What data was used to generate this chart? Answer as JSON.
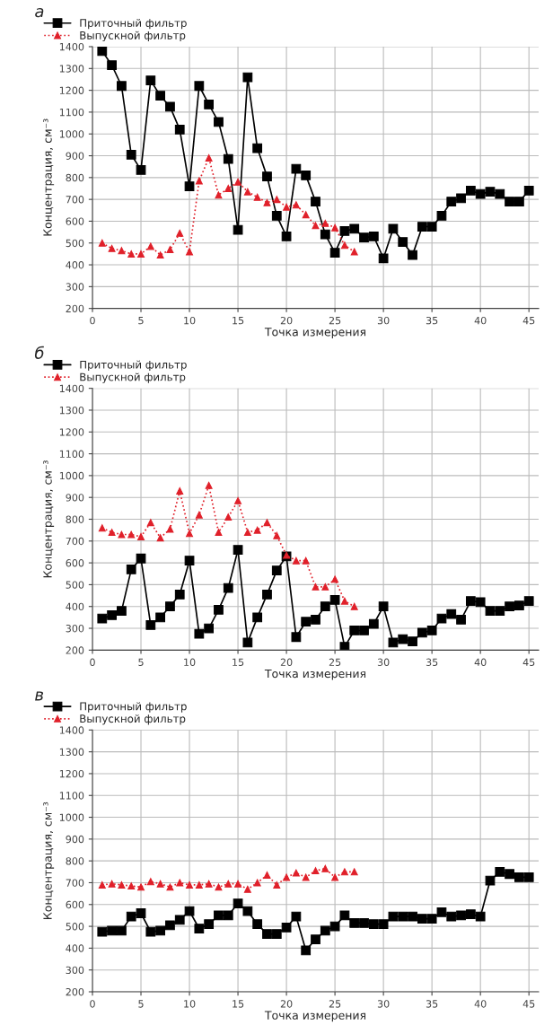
{
  "chart_data": [
    {
      "type": "line",
      "title": "а",
      "xlabel": "Точка измерения",
      "ylabel": "Концентрация, см⁻³",
      "xlim": [
        0,
        46
      ],
      "xticks": [
        0,
        5,
        10,
        15,
        20,
        25,
        30,
        35,
        40,
        45
      ],
      "ylim": [
        200,
        1400
      ],
      "yticks": [
        200,
        300,
        400,
        500,
        600,
        700,
        800,
        900,
        1000,
        1100,
        1200,
        1300,
        1400
      ],
      "grid": true,
      "legend": "top left",
      "series": [
        {
          "name": "Приточный фильтр",
          "color": "#000000",
          "marker": "square",
          "line_style": "solid",
          "x": [
            1,
            2,
            3,
            4,
            5,
            6,
            7,
            8,
            9,
            10,
            11,
            12,
            13,
            14,
            15,
            16,
            17,
            18,
            19,
            20,
            21,
            22,
            23,
            24,
            25,
            26,
            27,
            28,
            29,
            30,
            31,
            32,
            33,
            34,
            35,
            36,
            37,
            38,
            39,
            40,
            41,
            42,
            43,
            44,
            45
          ],
          "values": [
            1380,
            1315,
            1220,
            905,
            835,
            1245,
            1175,
            1125,
            1020,
            760,
            1220,
            1135,
            1055,
            885,
            560,
            1260,
            935,
            805,
            625,
            530,
            840,
            810,
            690,
            540,
            455,
            555,
            565,
            525,
            530,
            430,
            565,
            505,
            445,
            575,
            575,
            625,
            690,
            705,
            740,
            725,
            735,
            725,
            690,
            690,
            740
          ]
        },
        {
          "name": "Выпускной фильтр",
          "color": "#e0202a",
          "marker": "triangle",
          "line_style": "dotted",
          "x": [
            1,
            2,
            3,
            4,
            5,
            6,
            7,
            8,
            9,
            10,
            11,
            12,
            13,
            14,
            15,
            16,
            17,
            18,
            19,
            20,
            21,
            22,
            23,
            24,
            25,
            26,
            27
          ],
          "values": [
            500,
            475,
            465,
            450,
            450,
            485,
            445,
            470,
            545,
            460,
            785,
            890,
            720,
            750,
            780,
            735,
            710,
            685,
            700,
            665,
            675,
            630,
            580,
            590,
            570,
            490,
            460
          ]
        }
      ]
    },
    {
      "type": "line",
      "title": "б",
      "xlabel": "Точка измерения",
      "ylabel": "Концентрация, см⁻³",
      "xlim": [
        0,
        46
      ],
      "xticks": [
        0,
        5,
        10,
        15,
        20,
        25,
        30,
        35,
        40,
        45
      ],
      "ylim": [
        200,
        1400
      ],
      "yticks": [
        200,
        300,
        400,
        500,
        600,
        700,
        800,
        900,
        1000,
        1100,
        1200,
        1300,
        1400
      ],
      "grid": true,
      "legend": "top left",
      "series": [
        {
          "name": "Приточный фильтр",
          "color": "#000000",
          "marker": "square",
          "line_style": "solid",
          "x": [
            1,
            2,
            3,
            4,
            5,
            6,
            7,
            8,
            9,
            10,
            11,
            12,
            13,
            14,
            15,
            16,
            17,
            18,
            19,
            20,
            21,
            22,
            23,
            24,
            25,
            26,
            27,
            28,
            29,
            30,
            31,
            32,
            33,
            34,
            35,
            36,
            37,
            38,
            39,
            40,
            41,
            42,
            43,
            44,
            45
          ],
          "values": [
            345,
            360,
            380,
            570,
            620,
            315,
            350,
            400,
            455,
            610,
            275,
            300,
            385,
            485,
            660,
            235,
            350,
            455,
            565,
            630,
            260,
            330,
            340,
            400,
            430,
            215,
            290,
            290,
            320,
            400,
            235,
            250,
            240,
            280,
            290,
            345,
            365,
            340,
            425,
            420,
            380,
            380,
            400,
            405,
            425
          ]
        },
        {
          "name": "Выпускной фильтр",
          "color": "#e0202a",
          "marker": "triangle",
          "line_style": "dotted",
          "x": [
            1,
            2,
            3,
            4,
            5,
            6,
            7,
            8,
            9,
            10,
            11,
            12,
            13,
            14,
            15,
            16,
            17,
            18,
            19,
            20,
            21,
            22,
            23,
            24,
            25,
            26,
            27
          ],
          "values": [
            760,
            740,
            730,
            730,
            720,
            785,
            715,
            755,
            930,
            735,
            820,
            955,
            740,
            810,
            885,
            740,
            750,
            785,
            725,
            635,
            610,
            610,
            490,
            490,
            525,
            425,
            400
          ]
        }
      ]
    },
    {
      "type": "line",
      "title": "в",
      "xlabel": "Точка измерения",
      "ylabel": "Концентрация, см⁻³",
      "xlim": [
        0,
        46
      ],
      "xticks": [
        0,
        5,
        10,
        15,
        20,
        25,
        30,
        35,
        40,
        45
      ],
      "ylim": [
        200,
        1400
      ],
      "yticks": [
        200,
        300,
        400,
        500,
        600,
        700,
        800,
        900,
        1000,
        1100,
        1200,
        1300,
        1400
      ],
      "grid": true,
      "legend": "top left",
      "series": [
        {
          "name": "Приточный фильтр",
          "color": "#000000",
          "marker": "square",
          "line_style": "solid",
          "x": [
            1,
            2,
            3,
            4,
            5,
            6,
            7,
            8,
            9,
            10,
            11,
            12,
            13,
            14,
            15,
            16,
            17,
            18,
            19,
            20,
            21,
            22,
            23,
            24,
            25,
            26,
            27,
            28,
            29,
            30,
            31,
            32,
            33,
            34,
            35,
            36,
            37,
            38,
            39,
            40,
            41,
            42,
            43,
            44,
            45
          ],
          "values": [
            475,
            480,
            480,
            545,
            560,
            475,
            480,
            505,
            530,
            570,
            490,
            510,
            550,
            550,
            605,
            570,
            510,
            465,
            465,
            495,
            545,
            390,
            440,
            480,
            500,
            550,
            515,
            515,
            510,
            510,
            545,
            545,
            545,
            535,
            535,
            565,
            545,
            550,
            555,
            545,
            710,
            750,
            740,
            725,
            725
          ]
        },
        {
          "name": "Выпускной фильтр",
          "color": "#e0202a",
          "marker": "triangle",
          "line_style": "dotted",
          "x": [
            1,
            2,
            3,
            4,
            5,
            6,
            7,
            8,
            9,
            10,
            11,
            12,
            13,
            14,
            15,
            16,
            17,
            18,
            19,
            20,
            21,
            22,
            23,
            24,
            25,
            26,
            27
          ],
          "values": [
            690,
            695,
            690,
            685,
            680,
            705,
            695,
            680,
            700,
            690,
            690,
            695,
            680,
            695,
            695,
            670,
            700,
            735,
            690,
            725,
            745,
            725,
            755,
            765,
            725,
            750,
            750
          ]
        }
      ]
    }
  ]
}
